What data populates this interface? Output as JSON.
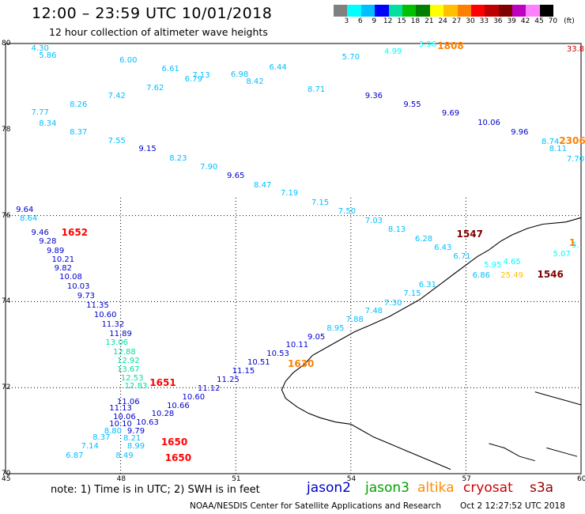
{
  "title": "12:00 – 23:59 UTC 10/01/2018",
  "subtitle": "12 hour collection of altimeter wave heights",
  "colorbar": {
    "colors": [
      "#808080",
      "#00ffff",
      "#00bfff",
      "#0000ff",
      "#00e0a0",
      "#00c000",
      "#008000",
      "#ffff00",
      "#ffc000",
      "#ff8000",
      "#ff0000",
      "#c00000",
      "#800000",
      "#c000c0",
      "#ff80ff",
      "#000000"
    ],
    "labels": [
      "3",
      "6",
      "9",
      "12",
      "15",
      "18",
      "21",
      "24",
      "27",
      "30",
      "33",
      "36",
      "39",
      "42",
      "45",
      "70"
    ],
    "unit": "(ft)"
  },
  "axes": {
    "x_ticks": [
      "45",
      "48",
      "51",
      "54",
      "57",
      "60"
    ],
    "y_ticks": [
      "80",
      "78",
      "76",
      "74",
      "72",
      "70"
    ]
  },
  "wave_heights": [
    {
      "t": "4.30",
      "c": "#00bfff",
      "lon": 45.9,
      "lat": 79.88
    },
    {
      "t": "5.86",
      "c": "#00bfff",
      "lon": 46.1,
      "lat": 79.71
    },
    {
      "t": "6.00",
      "c": "#00bfff",
      "lon": 48.2,
      "lat": 79.59
    },
    {
      "t": "6.61",
      "c": "#00bfff",
      "lon": 49.3,
      "lat": 79.39
    },
    {
      "t": "7.13",
      "c": "#00bfff",
      "lon": 50.1,
      "lat": 79.24
    },
    {
      "t": "6.79",
      "c": "#00bfff",
      "lon": 49.9,
      "lat": 79.16
    },
    {
      "t": "6.98",
      "c": "#00bfff",
      "lon": 51.1,
      "lat": 79.27
    },
    {
      "t": "6.44",
      "c": "#00bfff",
      "lon": 52.1,
      "lat": 79.43
    },
    {
      "t": "5.70",
      "c": "#00bfff",
      "lon": 54.0,
      "lat": 79.66
    },
    {
      "t": "4.99",
      "c": "#00ffff",
      "lon": 55.1,
      "lat": 79.8
    },
    {
      "t": "3.96",
      "c": "#00ffff",
      "lon": 56.0,
      "lat": 79.97
    },
    {
      "t": "7.62",
      "c": "#00bfff",
      "lon": 48.9,
      "lat": 78.96
    },
    {
      "t": "8.42",
      "c": "#00bfff",
      "lon": 51.5,
      "lat": 79.1
    },
    {
      "t": "8.71",
      "c": "#00bfff",
      "lon": 53.1,
      "lat": 78.91
    },
    {
      "t": "7.42",
      "c": "#00bfff",
      "lon": 47.9,
      "lat": 78.76
    },
    {
      "t": "9.36",
      "c": "#0000cd",
      "lon": 54.6,
      "lat": 78.76
    },
    {
      "t": "8.26",
      "c": "#00bfff",
      "lon": 46.9,
      "lat": 78.56
    },
    {
      "t": "9.55",
      "c": "#0000cd",
      "lon": 55.6,
      "lat": 78.56
    },
    {
      "t": "7.77",
      "c": "#00bfff",
      "lon": 45.9,
      "lat": 78.38
    },
    {
      "t": "9.69",
      "c": "#0000cd",
      "lon": 56.6,
      "lat": 78.36
    },
    {
      "t": "10.06",
      "c": "#0000cd",
      "lon": 57.6,
      "lat": 78.15
    },
    {
      "t": "8.34",
      "c": "#00bfff",
      "lon": 46.1,
      "lat": 78.13
    },
    {
      "t": "8.37",
      "c": "#00bfff",
      "lon": 46.9,
      "lat": 77.93
    },
    {
      "t": "9.96",
      "c": "#0000cd",
      "lon": 58.4,
      "lat": 77.92
    },
    {
      "t": "7.55",
      "c": "#00bfff",
      "lon": 47.9,
      "lat": 77.72
    },
    {
      "t": "8.74",
      "c": "#00bfff",
      "lon": 59.2,
      "lat": 77.71
    },
    {
      "t": "9.15",
      "c": "#0000cd",
      "lon": 48.7,
      "lat": 77.53
    },
    {
      "t": "8.11",
      "c": "#00bfff",
      "lon": 59.4,
      "lat": 77.53
    },
    {
      "t": "8.23",
      "c": "#00bfff",
      "lon": 49.5,
      "lat": 77.32
    },
    {
      "t": "7.70",
      "c": "#00bfff",
      "lon": 60.0,
      "lat": 77.3
    },
    {
      "t": "7.90",
      "c": "#00bfff",
      "lon": 50.3,
      "lat": 77.12
    },
    {
      "t": "9.65",
      "c": "#0000cd",
      "lon": 51.0,
      "lat": 76.91
    },
    {
      "t": "8.47",
      "c": "#00bfff",
      "lon": 51.7,
      "lat": 76.7
    },
    {
      "t": "7.19",
      "c": "#00bfff",
      "lon": 52.4,
      "lat": 76.5
    },
    {
      "t": "7.15",
      "c": "#00bfff",
      "lon": 53.2,
      "lat": 76.28
    },
    {
      "t": "7.50",
      "c": "#00bfff",
      "lon": 53.9,
      "lat": 76.08
    },
    {
      "t": "7.03",
      "c": "#00bfff",
      "lon": 54.6,
      "lat": 75.87
    },
    {
      "t": "8.13",
      "c": "#00bfff",
      "lon": 55.2,
      "lat": 75.66
    },
    {
      "t": "6.28",
      "c": "#00bfff",
      "lon": 55.9,
      "lat": 75.45
    },
    {
      "t": "6.43",
      "c": "#00bfff",
      "lon": 56.4,
      "lat": 75.23
    },
    {
      "t": "6.71",
      "c": "#00bfff",
      "lon": 56.9,
      "lat": 75.03
    },
    {
      "t": "5.95",
      "c": "#00ffff",
      "lon": 57.7,
      "lat": 74.83
    },
    {
      "t": "4.65",
      "c": "#00ffff",
      "lon": 58.2,
      "lat": 74.9
    },
    {
      "t": "5.07",
      "c": "#00ffff",
      "lon": 59.5,
      "lat": 75.1
    },
    {
      "t": "5.",
      "c": "#00ffff",
      "lon": 60.0,
      "lat": 75.3
    },
    {
      "t": "6.86",
      "c": "#00bfff",
      "lon": 57.4,
      "lat": 74.6
    },
    {
      "t": "25.49",
      "c": "#ffc000",
      "lon": 58.2,
      "lat": 74.6
    },
    {
      "t": "6.31",
      "c": "#00bfff",
      "lon": 56.0,
      "lat": 74.37
    },
    {
      "t": "7.15",
      "c": "#00bfff",
      "lon": 55.6,
      "lat": 74.17
    },
    {
      "t": "7.30",
      "c": "#00bfff",
      "lon": 55.1,
      "lat": 73.96
    },
    {
      "t": "7.48",
      "c": "#00bfff",
      "lon": 54.6,
      "lat": 73.76
    },
    {
      "t": "7.88",
      "c": "#00bfff",
      "lon": 54.1,
      "lat": 73.56
    },
    {
      "t": "8.95",
      "c": "#00bfff",
      "lon": 53.6,
      "lat": 73.37
    },
    {
      "t": "9.05",
      "c": "#0000cd",
      "lon": 53.1,
      "lat": 73.17
    },
    {
      "t": "10.11",
      "c": "#0000cd",
      "lon": 52.6,
      "lat": 72.97
    },
    {
      "t": "10.53",
      "c": "#0000cd",
      "lon": 52.1,
      "lat": 72.77
    },
    {
      "t": "10.51",
      "c": "#0000cd",
      "lon": 51.6,
      "lat": 72.57
    },
    {
      "t": "11.15",
      "c": "#0000cd",
      "lon": 51.2,
      "lat": 72.37
    },
    {
      "t": "11.25",
      "c": "#0000cd",
      "lon": 50.8,
      "lat": 72.17
    },
    {
      "t": "11.12",
      "c": "#0000cd",
      "lon": 50.3,
      "lat": 71.97
    },
    {
      "t": "10.60",
      "c": "#0000cd",
      "lon": 49.9,
      "lat": 71.77
    },
    {
      "t": "10.66",
      "c": "#0000cd",
      "lon": 49.5,
      "lat": 71.57
    },
    {
      "t": "10.28",
      "c": "#0000cd",
      "lon": 49.1,
      "lat": 71.37
    },
    {
      "t": "10.63",
      "c": "#0000cd",
      "lon": 48.7,
      "lat": 71.17
    },
    {
      "t": "9.79",
      "c": "#0000cd",
      "lon": 48.4,
      "lat": 70.97
    },
    {
      "t": "9.64",
      "c": "#0000cd",
      "lon": 45.5,
      "lat": 76.12
    },
    {
      "t": "8.64",
      "c": "#00bfff",
      "lon": 45.6,
      "lat": 75.91
    },
    {
      "t": "9.46",
      "c": "#0000cd",
      "lon": 45.9,
      "lat": 75.59
    },
    {
      "t": "9.28",
      "c": "#0000cd",
      "lon": 46.1,
      "lat": 75.38
    },
    {
      "t": "9.89",
      "c": "#0000cd",
      "lon": 46.3,
      "lat": 75.17
    },
    {
      "t": "10.21",
      "c": "#0000cd",
      "lon": 46.5,
      "lat": 74.96
    },
    {
      "t": "9.82",
      "c": "#0000cd",
      "lon": 46.5,
      "lat": 74.76
    },
    {
      "t": "10.08",
      "c": "#0000cd",
      "lon": 46.7,
      "lat": 74.55
    },
    {
      "t": "10.03",
      "c": "#0000cd",
      "lon": 46.9,
      "lat": 74.34
    },
    {
      "t": "9.73",
      "c": "#0000cd",
      "lon": 47.1,
      "lat": 74.12
    },
    {
      "t": "11.35",
      "c": "#0000cd",
      "lon": 47.4,
      "lat": 73.9
    },
    {
      "t": "10.60",
      "c": "#0000cd",
      "lon": 47.6,
      "lat": 73.68
    },
    {
      "t": "11.32",
      "c": "#0000cd",
      "lon": 47.8,
      "lat": 73.46
    },
    {
      "t": "11.89",
      "c": "#0000cd",
      "lon": 48.0,
      "lat": 73.24
    },
    {
      "t": "13.06",
      "c": "#00e0a0",
      "lon": 47.9,
      "lat": 73.03
    },
    {
      "t": "12.88",
      "c": "#00e0a0",
      "lon": 48.1,
      "lat": 72.82
    },
    {
      "t": "12.92",
      "c": "#00e0a0",
      "lon": 48.2,
      "lat": 72.61
    },
    {
      "t": "13.67",
      "c": "#00e0a0",
      "lon": 48.2,
      "lat": 72.41
    },
    {
      "t": "12.53",
      "c": "#00e0a0",
      "lon": 48.3,
      "lat": 72.21
    },
    {
      "t": "12.83",
      "c": "#00e0a0",
      "lon": 48.4,
      "lat": 72.02
    },
    {
      "t": "11.06",
      "c": "#0000cd",
      "lon": 48.2,
      "lat": 71.66
    },
    {
      "t": "11.13",
      "c": "#0000cd",
      "lon": 48.0,
      "lat": 71.5
    },
    {
      "t": "10.06",
      "c": "#0000cd",
      "lon": 48.1,
      "lat": 71.3
    },
    {
      "t": "10.10",
      "c": "#0000cd",
      "lon": 48.0,
      "lat": 71.14
    },
    {
      "t": "8.80",
      "c": "#00bfff",
      "lon": 47.8,
      "lat": 70.98
    },
    {
      "t": "8.37",
      "c": "#00bfff",
      "lon": 47.5,
      "lat": 70.82
    },
    {
      "t": "8.21",
      "c": "#00bfff",
      "lon": 48.3,
      "lat": 70.8
    },
    {
      "t": "7.14",
      "c": "#00bfff",
      "lon": 47.2,
      "lat": 70.63
    },
    {
      "t": "8.99",
      "c": "#00bfff",
      "lon": 48.4,
      "lat": 70.62
    },
    {
      "t": "6.87",
      "c": "#00bfff",
      "lon": 46.8,
      "lat": 70.41
    },
    {
      "t": "8.49",
      "c": "#00bfff",
      "lon": 48.1,
      "lat": 70.41
    },
    {
      "t": "33.8",
      "c": "#cc0000",
      "lon": 59.9,
      "lat": 79.85
    }
  ],
  "time_labels": [
    {
      "t": "1808",
      "c": "#ff8000",
      "lon": 56.6,
      "lat": 79.94
    },
    {
      "t": "2306",
      "c": "#ff8000",
      "lon": 59.9,
      "lat": 77.73
    },
    {
      "t": "1547",
      "c": "#800000",
      "lon": 57.1,
      "lat": 75.57
    },
    {
      "t": "1652",
      "c": "#ff0000",
      "lon": 46.8,
      "lat": 75.6
    },
    {
      "t": "1546",
      "c": "#800000",
      "lon": 59.2,
      "lat": 74.63
    },
    {
      "t": "1630",
      "c": "#ff8000",
      "lon": 52.7,
      "lat": 72.55
    },
    {
      "t": "1651",
      "c": "#ff0000",
      "lon": 49.1,
      "lat": 72.11
    },
    {
      "t": "1650",
      "c": "#ff0000",
      "lon": 49.4,
      "lat": 70.74
    },
    {
      "t": "1650",
      "c": "#ff0000",
      "lon": 49.5,
      "lat": 70.36
    },
    {
      "t": "1",
      "c": "#ff8000",
      "lon": 60.0,
      "lat": 75.36
    }
  ],
  "footer": {
    "note": "note: 1) Time is in UTC; 2) SWH is in feet",
    "legend": [
      {
        "name": "jason2",
        "color": "#0000cd"
      },
      {
        "name": "jason3",
        "color": "#00a000"
      },
      {
        "name": "altika",
        "color": "#ff8c00"
      },
      {
        "name": "cryosat",
        "color": "#cc0000"
      },
      {
        "name": "s3a",
        "color": "#990000"
      }
    ],
    "credit": "NOAA/NESDIS Center for Satellite Applications and Research",
    "timestamp": "Oct  2 12:27:52 UTC 2018"
  }
}
